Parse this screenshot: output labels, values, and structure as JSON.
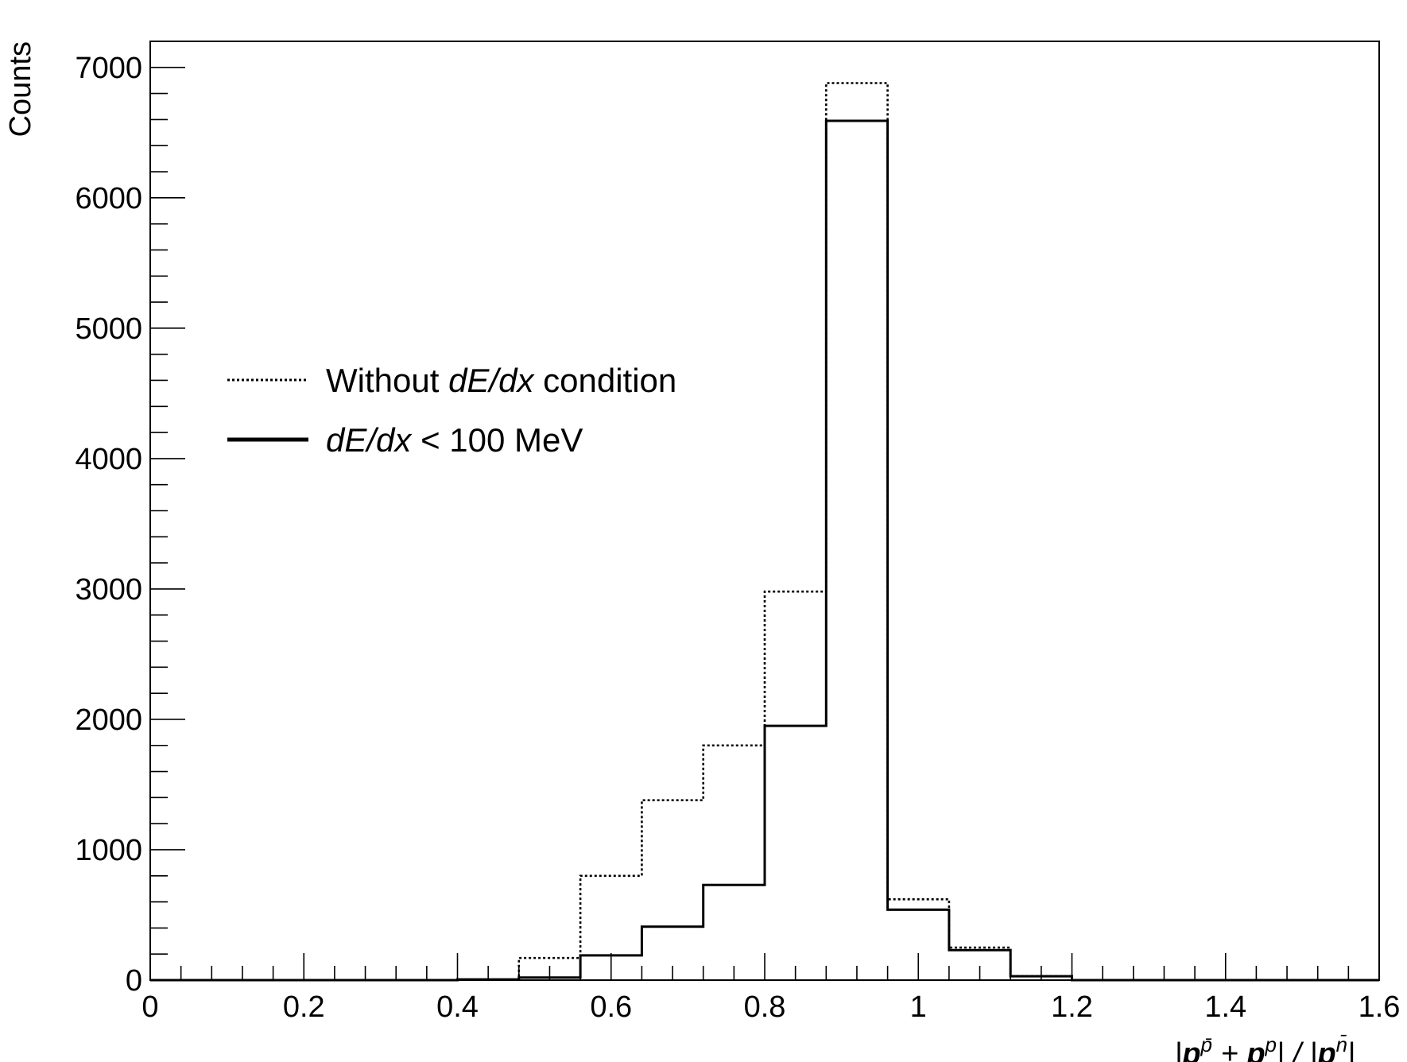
{
  "chart_data": {
    "type": "histogram",
    "title": "",
    "xlabel": {
      "parts": [
        {
          "text": "|",
          "italic": true
        },
        {
          "text": "p",
          "bold": true,
          "italic": true
        },
        {
          "text": "p̄",
          "sup": true,
          "italic": true
        },
        {
          "text": " + ",
          "italic": true
        },
        {
          "text": "p",
          "bold": true,
          "italic": true
        },
        {
          "text": "p",
          "sup": true,
          "italic": true
        },
        {
          "text": "| / |",
          "italic": true
        },
        {
          "text": "p",
          "bold": true,
          "italic": true
        },
        {
          "text": "n̄",
          "sup": true,
          "italic": true
        },
        {
          "text": "|",
          "italic": true
        }
      ]
    },
    "ylabel": "Counts",
    "xlim": [
      0,
      1.6
    ],
    "ylim": [
      0,
      7200
    ],
    "xticks": [
      {
        "value": 0,
        "label": "0"
      },
      {
        "value": 0.2,
        "label": "0.2"
      },
      {
        "value": 0.4,
        "label": "0.4"
      },
      {
        "value": 0.6,
        "label": "0.6"
      },
      {
        "value": 0.8,
        "label": "0.8"
      },
      {
        "value": 1.0,
        "label": "1"
      },
      {
        "value": 1.2,
        "label": "1.2"
      },
      {
        "value": 1.4,
        "label": "1.4"
      },
      {
        "value": 1.6,
        "label": "1.6"
      }
    ],
    "yticks": [
      {
        "value": 0,
        "label": "0"
      },
      {
        "value": 1000,
        "label": "1000"
      },
      {
        "value": 2000,
        "label": "2000"
      },
      {
        "value": 3000,
        "label": "3000"
      },
      {
        "value": 4000,
        "label": "4000"
      },
      {
        "value": 5000,
        "label": "5000"
      },
      {
        "value": 6000,
        "label": "6000"
      },
      {
        "value": 7000,
        "label": "7000"
      }
    ],
    "bin_edges": [
      0,
      0.08,
      0.16,
      0.24,
      0.32,
      0.4,
      0.48,
      0.56,
      0.64,
      0.72,
      0.8,
      0.88,
      0.96,
      1.04,
      1.12,
      1.2,
      1.28,
      1.36,
      1.44,
      1.52,
      1.6
    ],
    "series": [
      {
        "name": "Without dE/dx condition",
        "style": "dotted",
        "values": [
          0,
          0,
          0,
          0,
          0,
          5,
          170,
          800,
          1380,
          1800,
          2980,
          6880,
          620,
          250,
          30,
          0,
          0,
          0,
          0,
          0
        ]
      },
      {
        "name": "dE/dx < 100 MeV",
        "style": "solid",
        "values": [
          0,
          0,
          0,
          0,
          0,
          5,
          20,
          190,
          410,
          730,
          1950,
          6590,
          540,
          230,
          30,
          0,
          0,
          0,
          0,
          0
        ]
      }
    ],
    "legend": {
      "placement": "middle-left",
      "entries": [
        {
          "style": "dotted",
          "parts": [
            {
              "text": "Without "
            },
            {
              "text": "dE/dx",
              "italic": true
            },
            {
              "text": " condition"
            }
          ]
        },
        {
          "style": "solid",
          "parts": [
            {
              "text": "dE/dx",
              "italic": true
            },
            {
              "text": " < 100 MeV"
            }
          ]
        }
      ]
    },
    "colors": {
      "line": "#000000",
      "background": "#ffffff"
    }
  }
}
